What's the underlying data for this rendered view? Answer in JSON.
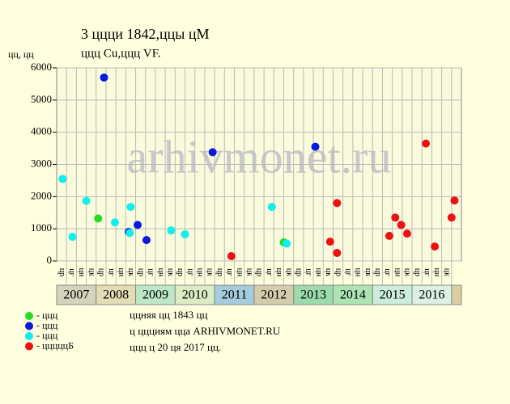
{
  "chart_data": {
    "type": "scatter",
    "title": "3 ццци 1842,ццы цМ",
    "subtitle": "ццц Cu,ццц VF.",
    "y_label": "цц, цц",
    "ylim": [
      0,
      6000
    ],
    "yticks": [
      0,
      1000,
      2000,
      3000,
      4000,
      5000,
      6000
    ],
    "xlim": [
      0,
      41
    ],
    "categories": [
      "цр",
      "цг",
      "цн",
      "цк",
      "цр",
      "цг",
      "цн",
      "цк",
      "цр",
      "цг",
      "цн",
      "цк",
      "цр",
      "цг",
      "цн",
      "цк",
      "цр",
      "цг",
      "цн",
      "цк",
      "цр",
      "цг",
      "цн",
      "цк",
      "цр",
      "цг",
      "цн",
      "цк",
      "цр",
      "цг",
      "цн",
      "цк",
      "цр",
      "цг",
      "цн",
      "цк",
      "цр",
      "цг",
      "цн",
      "цк"
    ],
    "years": [
      "2007",
      "2008",
      "2009",
      "2010",
      "2011",
      "2012",
      "2013",
      "2014",
      "2015",
      "2016"
    ],
    "year_colors": [
      "#d4d4bc",
      "#e4dcb4",
      "#bce8c8",
      "#dcecc4",
      "#a4ccdc",
      "#d4ccac",
      "#9cdcac",
      "#ace4b4",
      "#ccecdc",
      "#dcf0e4"
    ],
    "grid": true,
    "series": [
      {
        "name": "- ццц",
        "color": "#22dd22",
        "x": [
          4.2,
          23.0
        ],
        "values": [
          1320,
          580
        ]
      },
      {
        "name": "- ццц",
        "color": "#0a1adc",
        "x": [
          4.8,
          7.3,
          8.2,
          9.1,
          15.8,
          26.2
        ],
        "values": [
          5700,
          900,
          1120,
          650,
          3380,
          3550
        ]
      },
      {
        "name": "- ццц",
        "color": "#11eeee",
        "x": [
          0.6,
          1.6,
          3.0,
          5.9,
          7.5,
          7.4,
          11.6,
          13.0,
          21.8,
          23.3
        ],
        "values": [
          2550,
          750,
          1870,
          1200,
          1680,
          870,
          950,
          830,
          1680,
          540
        ]
      },
      {
        "name": "- цццццБ",
        "color": "#ee1111",
        "x": [
          17.7,
          27.7,
          28.4,
          28.4,
          33.7,
          34.3,
          34.9,
          35.5,
          37.4,
          38.3,
          40.0,
          40.3
        ],
        "values": [
          150,
          600,
          250,
          1800,
          780,
          1350,
          1120,
          850,
          3650,
          450,
          1350,
          1880
        ]
      }
    ],
    "notes": [
      "ццняя цц 1843 цц",
      "ц ццциям цца ARHIVMONET.RU",
      "ццц ц 20 ця 2017 цц."
    ],
    "watermark": "arhivmonet.ru"
  }
}
